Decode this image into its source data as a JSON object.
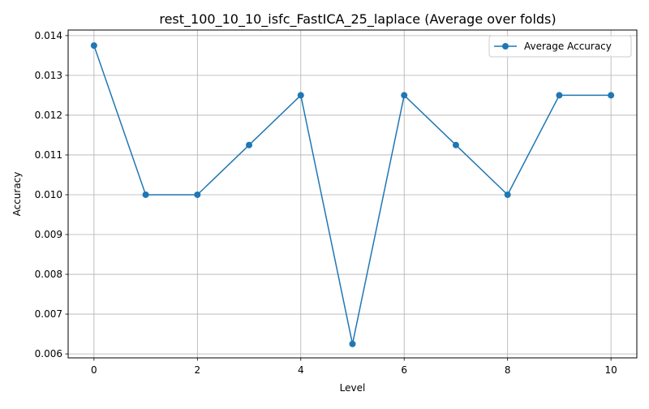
{
  "chart_data": {
    "type": "line",
    "title": "rest_100_10_10_isfc_FastICA_25_laplace (Average over folds)",
    "xlabel": "Level",
    "ylabel": "Accuracy",
    "x": [
      0,
      1,
      2,
      3,
      4,
      5,
      6,
      7,
      8,
      9,
      10
    ],
    "series": [
      {
        "name": "Average Accuracy",
        "color": "#1f77b4",
        "marker": "circle",
        "values": [
          0.01375,
          0.01,
          0.01,
          0.01125,
          0.0125,
          0.00625,
          0.0125,
          0.01125,
          0.01,
          0.0125,
          0.0125
        ]
      }
    ],
    "xlim": [
      -0.5,
      10.5
    ],
    "ylim": [
      0.0059,
      0.01414
    ],
    "xticks": [
      0,
      2,
      4,
      6,
      8,
      10
    ],
    "xtick_labels": [
      "0",
      "2",
      "4",
      "6",
      "8",
      "10"
    ],
    "yticks": [
      0.006,
      0.007,
      0.008,
      0.009,
      0.01,
      0.011,
      0.012,
      0.013,
      0.014
    ],
    "ytick_labels": [
      "0.006",
      "0.007",
      "0.008",
      "0.009",
      "0.010",
      "0.011",
      "0.012",
      "0.013",
      "0.014"
    ],
    "grid": true,
    "legend_position": "top-right"
  }
}
